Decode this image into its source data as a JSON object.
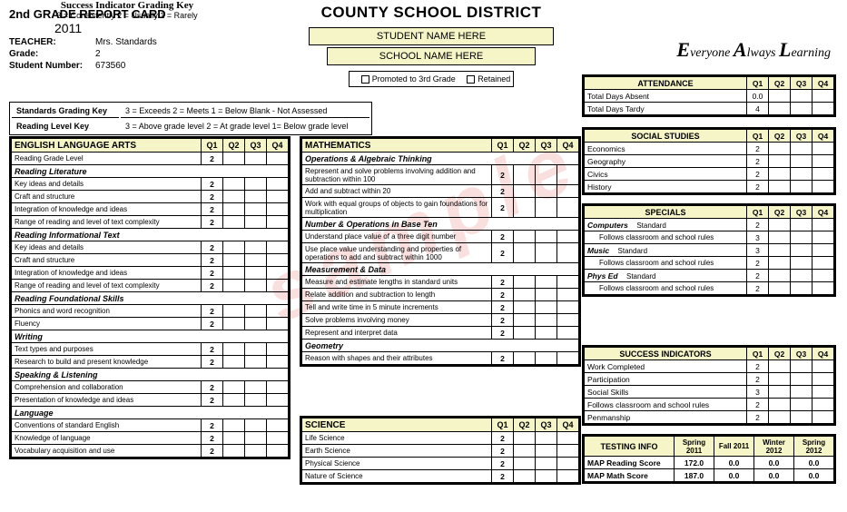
{
  "header": {
    "report_title": "2nd GRADE REPORT CARD",
    "year": "2011",
    "teacher_label": "TEACHER:",
    "teacher": "Mrs. Standards",
    "grade_label": "Grade:",
    "grade": "2",
    "student_num_label": "Student Number:",
    "student_num": "673560",
    "district": "COUNTY SCHOOL DISTRICT",
    "student_name": "STUDENT NAME HERE",
    "school_name": "SCHOOL NAME HERE",
    "promo1": "Promoted to 3rd Grade",
    "promo2": "Retained",
    "motto_e": "E",
    "motto_e2": "veryone",
    "motto_a": "A",
    "motto_a2": "lways",
    "motto_l": "L",
    "motto_l2": "earning"
  },
  "keys": {
    "std_label": "Standards Grading Key",
    "std_text": "3 = Exceeds    2 = Meets    1 = Below    Blank - Not Assessed",
    "rd_label": "Reading Level Key",
    "rd_text": "3 = Above grade level    2 = At grade level    1= Below grade level"
  },
  "quarters": [
    "Q1",
    "Q2",
    "Q3",
    "Q4"
  ],
  "ela": {
    "title": "ENGLISH LANGUAGE ARTS",
    "rows": [
      {
        "label": "Reading Grade Level",
        "type": "item",
        "q1": "2"
      },
      {
        "label": "Reading Literature",
        "type": "sub"
      },
      {
        "label": "Key ideas and details",
        "type": "item",
        "q1": "2"
      },
      {
        "label": "Craft and structure",
        "type": "item",
        "q1": "2"
      },
      {
        "label": "Integration of knowledge and ideas",
        "type": "item",
        "q1": "2"
      },
      {
        "label": "Range of reading and level of text complexity",
        "type": "item",
        "q1": "2"
      },
      {
        "label": "Reading Informational Text",
        "type": "sub"
      },
      {
        "label": "Key ideas and details",
        "type": "item",
        "q1": "2"
      },
      {
        "label": "Craft and structure",
        "type": "item",
        "q1": "2"
      },
      {
        "label": "Integration of knowledge and ideas",
        "type": "item",
        "q1": "2"
      },
      {
        "label": "Range of reading and level of text complexity",
        "type": "item",
        "q1": "2"
      },
      {
        "label": "Reading Foundational Skills",
        "type": "sub"
      },
      {
        "label": "Phonics and word recognition",
        "type": "item",
        "q1": "2"
      },
      {
        "label": "Fluency",
        "type": "item",
        "q1": "2"
      },
      {
        "label": "Writing",
        "type": "sub"
      },
      {
        "label": "Text types and purposes",
        "type": "item",
        "q1": "2"
      },
      {
        "label": "Research to build and present knowledge",
        "type": "item",
        "q1": "2"
      },
      {
        "label": "Speaking & Listening",
        "type": "sub"
      },
      {
        "label": "Comprehension and collaboration",
        "type": "item",
        "q1": "2"
      },
      {
        "label": "Presentation of knowledge and ideas",
        "type": "item",
        "q1": "2"
      },
      {
        "label": "Language",
        "type": "sub"
      },
      {
        "label": "Conventions of standard English",
        "type": "item",
        "q1": "2"
      },
      {
        "label": "Knowledge of language",
        "type": "item",
        "q1": "2"
      },
      {
        "label": "Vocabulary acquisition and use",
        "type": "item",
        "q1": "2"
      }
    ]
  },
  "math": {
    "title": "MATHEMATICS",
    "rows": [
      {
        "label": "Operations & Algebraic Thinking",
        "type": "sub"
      },
      {
        "label": "Represent and solve problems involving addition and subtraction within 100",
        "type": "item",
        "q1": "2"
      },
      {
        "label": "Add and subtract within 20",
        "type": "item",
        "q1": "2"
      },
      {
        "label": "Work with equal groups of objects to gain foundations for multiplication",
        "type": "item",
        "q1": "2"
      },
      {
        "label": "Number & Operations in Base Ten",
        "type": "sub"
      },
      {
        "label": "Understand place value of a three digit number",
        "type": "item",
        "q1": "2"
      },
      {
        "label": "Use place value understanding and properties of operations to add and subtract within 1000",
        "type": "item",
        "q1": "2"
      },
      {
        "label": "Measurement & Data",
        "type": "sub"
      },
      {
        "label": "Measure and estimate lengths in standard units",
        "type": "item",
        "q1": "2"
      },
      {
        "label": "Relate addition and subtraction to length",
        "type": "item",
        "q1": "2"
      },
      {
        "label": "Tell and write time in 5 minute increments",
        "type": "item",
        "q1": "2"
      },
      {
        "label": "Solve problems involving money",
        "type": "item",
        "q1": "2"
      },
      {
        "label": "Represent and interpret data",
        "type": "item",
        "q1": "2"
      },
      {
        "label": "Geometry",
        "type": "sub"
      },
      {
        "label": "Reason with shapes and their attributes",
        "type": "item",
        "q1": "2"
      }
    ]
  },
  "science": {
    "title": "SCIENCE",
    "rows": [
      {
        "label": "Life Science",
        "type": "item",
        "q1": "2"
      },
      {
        "label": "Earth Science",
        "type": "item",
        "q1": "2"
      },
      {
        "label": "Physical Science",
        "type": "item",
        "q1": "2"
      },
      {
        "label": "Nature of Science",
        "type": "item",
        "q1": "2"
      }
    ]
  },
  "attendance": {
    "title": "ATTENDANCE",
    "rows": [
      {
        "label": "Total Days Absent",
        "q1": "0.0"
      },
      {
        "label": "Total Days Tardy",
        "q1": "4"
      }
    ]
  },
  "social": {
    "title": "SOCIAL STUDIES",
    "rows": [
      {
        "label": "Economics",
        "q1": "2"
      },
      {
        "label": "Geography",
        "q1": "2"
      },
      {
        "label": "Civics",
        "q1": "2"
      },
      {
        "label": "History",
        "q1": "2"
      }
    ]
  },
  "specials": {
    "title": "SPECIALS",
    "rows": [
      {
        "label": "Computers",
        "note": "Standard",
        "q1": "2",
        "type": "sub"
      },
      {
        "label": "Follows classroom and school rules",
        "q1": "3",
        "type": "item"
      },
      {
        "label": "Music",
        "note": "Standard",
        "q1": "3",
        "type": "sub"
      },
      {
        "label": "Follows classroom and school rules",
        "q1": "2",
        "type": "item"
      },
      {
        "label": "Phys Ed",
        "note": "Standard",
        "q1": "2",
        "type": "sub"
      },
      {
        "label": "Follows classroom and school rules",
        "q1": "2",
        "type": "item"
      }
    ]
  },
  "success_key": {
    "title": "Success Indicator Grading Key",
    "text": "3 = Consistently    2 = Usually    1 = Rarely"
  },
  "success": {
    "title": "SUCCESS INDICATORS",
    "rows": [
      {
        "label": "Work Completed",
        "q1": "2"
      },
      {
        "label": "Participation",
        "q1": "2"
      },
      {
        "label": "Social Skills",
        "q1": "3"
      },
      {
        "label": "Follows classroom and school rules",
        "q1": "2"
      },
      {
        "label": "Penmanship",
        "q1": "2"
      }
    ]
  },
  "testing": {
    "title": "TESTING INFO",
    "cols": [
      "Spring 2011",
      "Fall 2011",
      "Winter 2012",
      "Spring 2012"
    ],
    "rows": [
      {
        "label": "MAP Reading Score",
        "v": [
          "172.0",
          "0.0",
          "0.0",
          "0.0"
        ]
      },
      {
        "label": "MAP Math Score",
        "v": [
          "187.0",
          "0.0",
          "0.0",
          "0.0"
        ]
      }
    ]
  },
  "colors": {
    "header_bg": "#f5f5c8",
    "border": "#000000"
  }
}
